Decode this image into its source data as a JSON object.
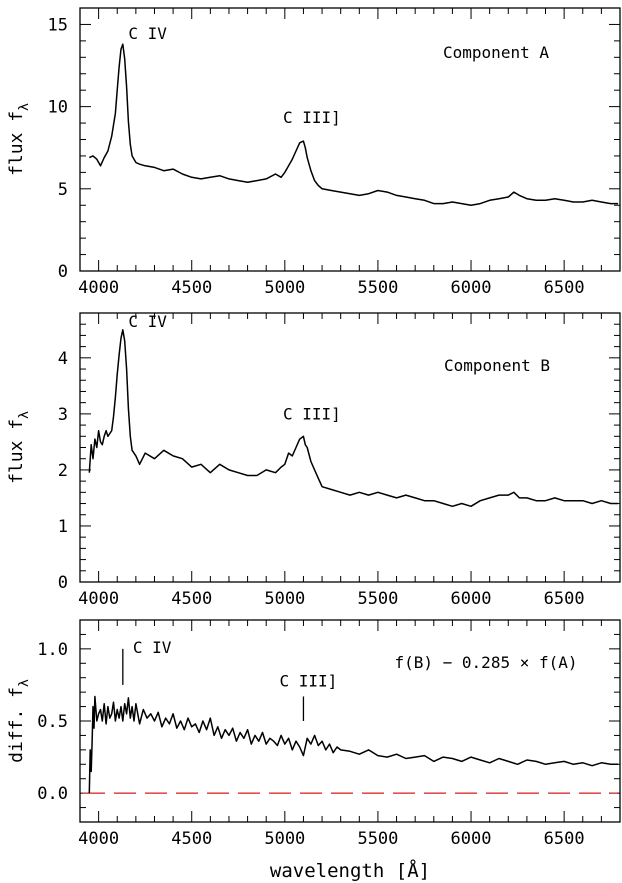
{
  "chart_data": [
    {
      "type": "line",
      "panel_label": "Component A",
      "ylabel_main": "flux f",
      "ylabel_sub": "λ",
      "xlabel": "",
      "xlim": [
        3900,
        6800
      ],
      "ylim": [
        0,
        16
      ],
      "xticks": [
        4000,
        4500,
        5000,
        5500,
        6000,
        6500
      ],
      "yticks": [
        0,
        5,
        10,
        15
      ],
      "annotations": [
        {
          "text": "C  IV",
          "x": 4160,
          "y": 14.1
        },
        {
          "text": "C  III]",
          "x": 4990,
          "y": 9.0
        }
      ],
      "series": [
        {
          "x": [
            3950,
            3970,
            3990,
            4010,
            4030,
            4050,
            4070,
            4090,
            4100,
            4110,
            4120,
            4130,
            4140,
            4150,
            4160,
            4170,
            4180,
            4200,
            4220,
            4250,
            4300,
            4350,
            4400,
            4450,
            4500,
            4550,
            4600,
            4650,
            4700,
            4750,
            4800,
            4850,
            4900,
            4950,
            4980,
            5000,
            5020,
            5040,
            5060,
            5080,
            5100,
            5110,
            5120,
            5140,
            5160,
            5180,
            5200,
            5250,
            5300,
            5350,
            5400,
            5450,
            5500,
            5550,
            5600,
            5650,
            5700,
            5750,
            5800,
            5850,
            5900,
            5950,
            6000,
            6050,
            6100,
            6150,
            6200,
            6230,
            6260,
            6300,
            6350,
            6400,
            6450,
            6500,
            6550,
            6600,
            6650,
            6700,
            6750,
            6790
          ],
          "y": [
            6.9,
            7.0,
            6.8,
            6.4,
            6.9,
            7.3,
            8.2,
            9.6,
            11.0,
            12.4,
            13.5,
            13.8,
            12.9,
            11.2,
            9.1,
            7.7,
            7.0,
            6.6,
            6.5,
            6.4,
            6.3,
            6.1,
            6.2,
            5.9,
            5.7,
            5.6,
            5.7,
            5.8,
            5.6,
            5.5,
            5.4,
            5.5,
            5.6,
            5.9,
            5.7,
            6.0,
            6.4,
            6.8,
            7.3,
            7.8,
            7.9,
            7.5,
            6.9,
            6.1,
            5.5,
            5.2,
            5.0,
            4.9,
            4.8,
            4.7,
            4.6,
            4.7,
            4.9,
            4.8,
            4.6,
            4.5,
            4.4,
            4.3,
            4.1,
            4.1,
            4.2,
            4.1,
            4.0,
            4.1,
            4.3,
            4.4,
            4.5,
            4.8,
            4.6,
            4.4,
            4.3,
            4.3,
            4.4,
            4.3,
            4.2,
            4.2,
            4.3,
            4.2,
            4.1,
            4.1
          ]
        }
      ]
    },
    {
      "type": "line",
      "panel_label": "Component B",
      "ylabel_main": "flux f",
      "ylabel_sub": "λ",
      "xlabel": "",
      "xlim": [
        3900,
        6800
      ],
      "ylim": [
        0,
        4.8
      ],
      "xticks": [
        4000,
        4500,
        5000,
        5500,
        6000,
        6500
      ],
      "yticks": [
        0,
        1,
        2,
        3,
        4
      ],
      "annotations": [
        {
          "text": "C  IV",
          "x": 4160,
          "y": 4.55
        },
        {
          "text": "C  III]",
          "x": 4990,
          "y": 2.9
        }
      ],
      "series": [
        {
          "x": [
            3950,
            3960,
            3970,
            3980,
            3990,
            4000,
            4010,
            4020,
            4030,
            4040,
            4050,
            4060,
            4070,
            4080,
            4090,
            4100,
            4110,
            4120,
            4130,
            4140,
            4150,
            4160,
            4170,
            4180,
            4200,
            4220,
            4250,
            4300,
            4350,
            4400,
            4450,
            4500,
            4550,
            4600,
            4650,
            4700,
            4750,
            4800,
            4850,
            4900,
            4950,
            4980,
            5000,
            5020,
            5040,
            5060,
            5080,
            5100,
            5110,
            5120,
            5140,
            5160,
            5180,
            5200,
            5250,
            5300,
            5350,
            5400,
            5450,
            5500,
            5550,
            5600,
            5650,
            5700,
            5750,
            5800,
            5850,
            5900,
            5950,
            6000,
            6050,
            6100,
            6150,
            6200,
            6230,
            6260,
            6300,
            6350,
            6400,
            6450,
            6500,
            6550,
            6600,
            6650,
            6700,
            6750,
            6790
          ],
          "y": [
            1.95,
            2.45,
            2.2,
            2.55,
            2.4,
            2.7,
            2.5,
            2.45,
            2.6,
            2.7,
            2.6,
            2.65,
            2.7,
            2.95,
            3.3,
            3.7,
            4.05,
            4.35,
            4.5,
            4.3,
            3.8,
            3.1,
            2.6,
            2.35,
            2.25,
            2.1,
            2.3,
            2.2,
            2.35,
            2.25,
            2.2,
            2.05,
            2.1,
            1.95,
            2.1,
            2.0,
            1.95,
            1.9,
            1.9,
            2.0,
            1.95,
            2.05,
            2.1,
            2.3,
            2.25,
            2.4,
            2.55,
            2.6,
            2.45,
            2.4,
            2.15,
            2.0,
            1.85,
            1.7,
            1.65,
            1.6,
            1.55,
            1.6,
            1.55,
            1.6,
            1.55,
            1.5,
            1.55,
            1.5,
            1.45,
            1.45,
            1.4,
            1.35,
            1.4,
            1.35,
            1.45,
            1.5,
            1.55,
            1.55,
            1.6,
            1.5,
            1.5,
            1.45,
            1.45,
            1.5,
            1.45,
            1.45,
            1.45,
            1.4,
            1.45,
            1.4,
            1.4
          ]
        }
      ]
    },
    {
      "type": "line",
      "panel_label": "f(B)  −  0.285  ×  f(A)",
      "ylabel_main": "diff. f",
      "ylabel_sub": "λ",
      "xlabel": "wavelength  [Å]",
      "xlim": [
        3900,
        6800
      ],
      "ylim": [
        -0.2,
        1.2
      ],
      "xticks": [
        4000,
        4500,
        5000,
        5500,
        6000,
        6500
      ],
      "yticks": [
        0.0,
        0.5,
        1.0
      ],
      "yticklabels": [
        "0.0",
        "0.5",
        "1.0"
      ],
      "markers": [
        {
          "label": "C  IV",
          "x": 4130,
          "y_low": 0.75,
          "y_high": 1.0
        },
        {
          "label": "C  III]",
          "x": 5100,
          "y_low": 0.5,
          "y_high": 0.67
        }
      ],
      "zero_line": {
        "y": 0.0,
        "color": "#e05050",
        "style": "dashed"
      },
      "series": [
        {
          "x": [
            3950,
            3955,
            3960,
            3965,
            3970,
            3975,
            3980,
            3990,
            4000,
            4010,
            4020,
            4030,
            4040,
            4050,
            4060,
            4070,
            4080,
            4090,
            4100,
            4110,
            4120,
            4130,
            4140,
            4150,
            4160,
            4170,
            4180,
            4190,
            4200,
            4220,
            4240,
            4260,
            4280,
            4300,
            4320,
            4340,
            4360,
            4380,
            4400,
            4420,
            4440,
            4460,
            4480,
            4500,
            4520,
            4540,
            4560,
            4580,
            4600,
            4620,
            4640,
            4660,
            4680,
            4700,
            4720,
            4740,
            4760,
            4780,
            4800,
            4820,
            4840,
            4860,
            4880,
            4900,
            4920,
            4940,
            4960,
            4980,
            5000,
            5020,
            5040,
            5060,
            5080,
            5100,
            5120,
            5140,
            5160,
            5180,
            5200,
            5220,
            5240,
            5260,
            5280,
            5300,
            5350,
            5400,
            5450,
            5500,
            5550,
            5600,
            5650,
            5700,
            5750,
            5800,
            5850,
            5900,
            5950,
            6000,
            6050,
            6100,
            6150,
            6200,
            6250,
            6300,
            6350,
            6400,
            6450,
            6500,
            6550,
            6600,
            6650,
            6700,
            6750,
            6790
          ],
          "y": [
            0.0,
            0.3,
            0.15,
            0.35,
            0.6,
            0.45,
            0.67,
            0.5,
            0.55,
            0.58,
            0.5,
            0.62,
            0.48,
            0.6,
            0.52,
            0.55,
            0.63,
            0.5,
            0.58,
            0.52,
            0.6,
            0.5,
            0.62,
            0.55,
            0.66,
            0.52,
            0.6,
            0.5,
            0.62,
            0.48,
            0.58,
            0.52,
            0.55,
            0.5,
            0.56,
            0.46,
            0.52,
            0.48,
            0.55,
            0.45,
            0.5,
            0.44,
            0.52,
            0.46,
            0.48,
            0.42,
            0.5,
            0.44,
            0.52,
            0.4,
            0.46,
            0.38,
            0.44,
            0.4,
            0.45,
            0.36,
            0.42,
            0.38,
            0.44,
            0.34,
            0.4,
            0.36,
            0.42,
            0.34,
            0.38,
            0.36,
            0.33,
            0.4,
            0.34,
            0.38,
            0.3,
            0.36,
            0.32,
            0.26,
            0.38,
            0.34,
            0.4,
            0.33,
            0.36,
            0.3,
            0.34,
            0.28,
            0.32,
            0.3,
            0.29,
            0.27,
            0.3,
            0.26,
            0.25,
            0.27,
            0.24,
            0.25,
            0.26,
            0.22,
            0.25,
            0.24,
            0.22,
            0.25,
            0.23,
            0.21,
            0.24,
            0.22,
            0.2,
            0.23,
            0.22,
            0.2,
            0.21,
            0.22,
            0.2,
            0.21,
            0.19,
            0.21,
            0.2,
            0.2
          ]
        }
      ]
    }
  ]
}
